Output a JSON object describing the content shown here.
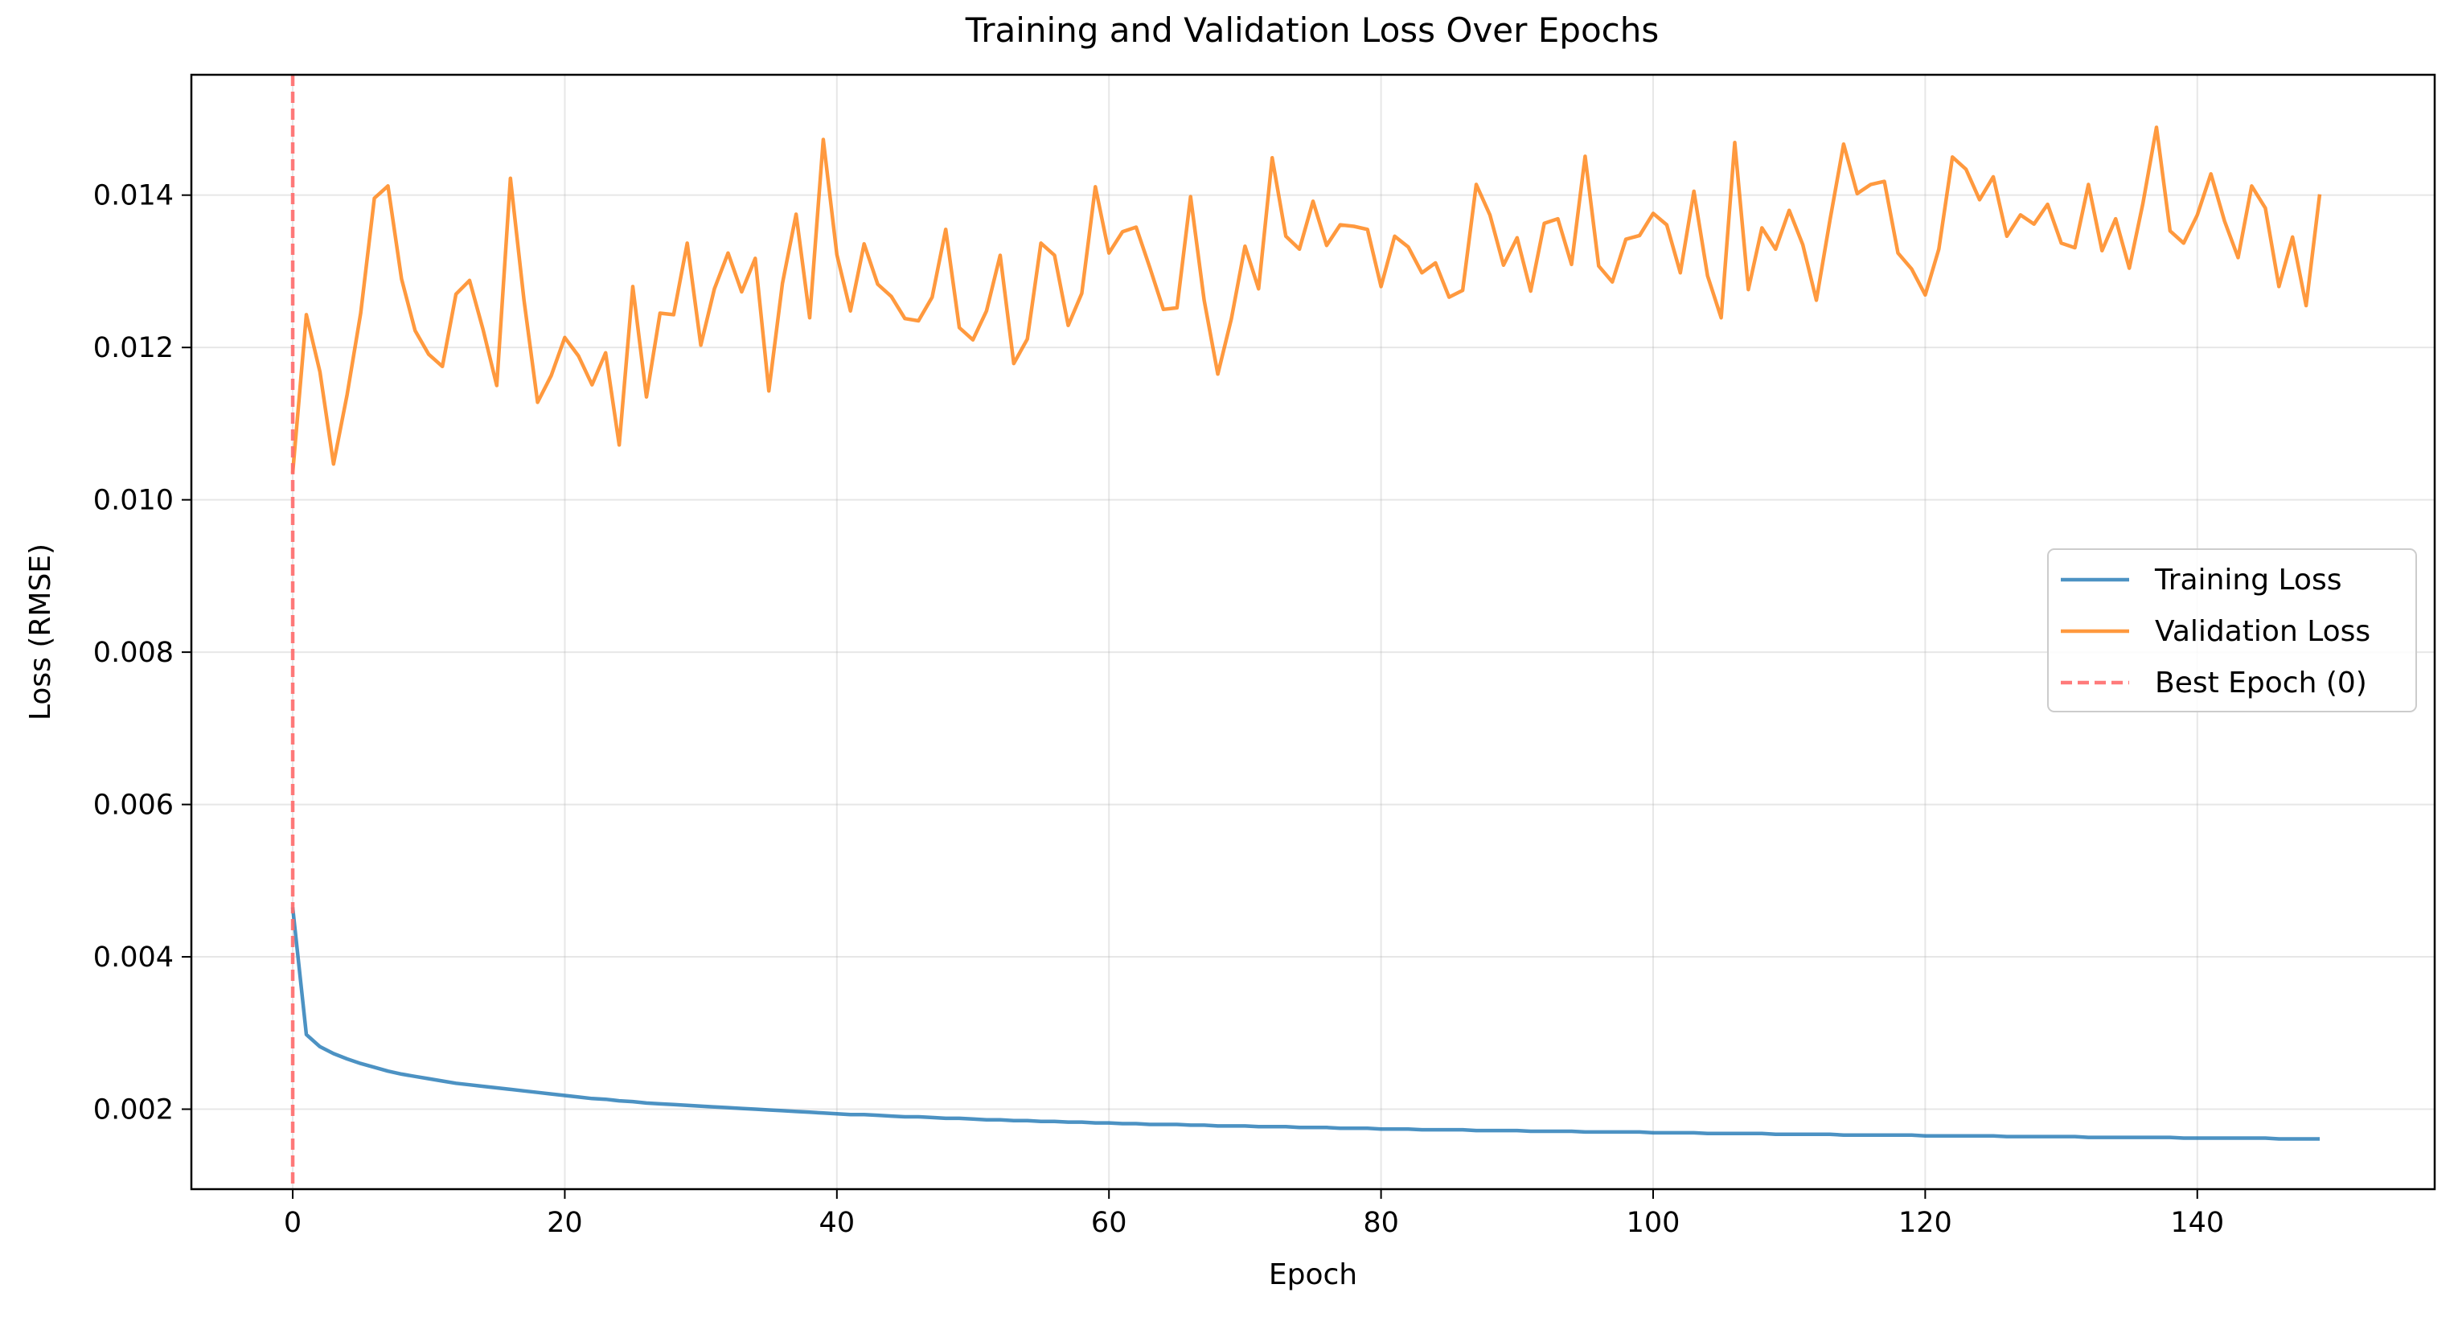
{
  "chart_data": {
    "type": "line",
    "title": "Training and Validation Loss Over Epochs",
    "xlabel": "Epoch",
    "ylabel": "Loss (RMSE)",
    "xlim": [
      -7.45,
      157.45
    ],
    "ylim": [
      0.00095,
      0.01558
    ],
    "xticks": [
      0,
      20,
      40,
      60,
      80,
      100,
      120,
      140
    ],
    "yticks": [
      0.002,
      0.004,
      0.006,
      0.008,
      0.01,
      0.012,
      0.014
    ],
    "ytick_labels": [
      "0.002",
      "0.004",
      "0.006",
      "0.008",
      "0.010",
      "0.012",
      "0.014"
    ],
    "grid": true,
    "legend_position": "center-right",
    "series": [
      {
        "name": "Training Loss",
        "color": "#1f77b4",
        "style": "solid",
        "x_start": 0,
        "values": [
          0.00465,
          0.00298,
          0.00282,
          0.00273,
          0.00266,
          0.0026,
          0.00255,
          0.0025,
          0.00246,
          0.00243,
          0.0024,
          0.00237,
          0.00234,
          0.00232,
          0.0023,
          0.00228,
          0.00226,
          0.00224,
          0.00222,
          0.0022,
          0.00218,
          0.00216,
          0.00214,
          0.00213,
          0.00211,
          0.0021,
          0.00208,
          0.00207,
          0.00206,
          0.00205,
          0.00204,
          0.00203,
          0.00202,
          0.00201,
          0.002,
          0.00199,
          0.00198,
          0.00197,
          0.00196,
          0.00195,
          0.00194,
          0.00193,
          0.00193,
          0.00192,
          0.00191,
          0.0019,
          0.0019,
          0.00189,
          0.00188,
          0.00188,
          0.00187,
          0.00186,
          0.00186,
          0.00185,
          0.00185,
          0.00184,
          0.00184,
          0.00183,
          0.00183,
          0.00182,
          0.00182,
          0.00181,
          0.00181,
          0.0018,
          0.0018,
          0.0018,
          0.00179,
          0.00179,
          0.00178,
          0.00178,
          0.00178,
          0.00177,
          0.00177,
          0.00177,
          0.00176,
          0.00176,
          0.00176,
          0.00175,
          0.00175,
          0.00175,
          0.00174,
          0.00174,
          0.00174,
          0.00173,
          0.00173,
          0.00173,
          0.00173,
          0.00172,
          0.00172,
          0.00172,
          0.00172,
          0.00171,
          0.00171,
          0.00171,
          0.00171,
          0.0017,
          0.0017,
          0.0017,
          0.0017,
          0.0017,
          0.00169,
          0.00169,
          0.00169,
          0.00169,
          0.00168,
          0.00168,
          0.00168,
          0.00168,
          0.00168,
          0.00167,
          0.00167,
          0.00167,
          0.00167,
          0.00167,
          0.00166,
          0.00166,
          0.00166,
          0.00166,
          0.00166,
          0.00166,
          0.00165,
          0.00165,
          0.00165,
          0.00165,
          0.00165,
          0.00165,
          0.00164,
          0.00164,
          0.00164,
          0.00164,
          0.00164,
          0.00164,
          0.00163,
          0.00163,
          0.00163,
          0.00163,
          0.00163,
          0.00163,
          0.00163,
          0.00162,
          0.00162,
          0.00162,
          0.00162,
          0.00162,
          0.00162,
          0.00162,
          0.00161,
          0.00161,
          0.00161,
          0.00161
        ]
      },
      {
        "name": "Validation Loss",
        "color": "#ff7f0e",
        "style": "solid",
        "x_start": 0,
        "values": [
          0.01035,
          0.01243,
          0.01168,
          0.01047,
          0.01138,
          0.01245,
          0.01396,
          0.01412,
          0.0129,
          0.01222,
          0.01191,
          0.01175,
          0.0127,
          0.01288,
          0.01223,
          0.0115,
          0.01422,
          0.01262,
          0.01128,
          0.01163,
          0.01213,
          0.01189,
          0.01151,
          0.01193,
          0.01072,
          0.0128,
          0.01135,
          0.01245,
          0.01243,
          0.01337,
          0.01203,
          0.01277,
          0.01324,
          0.01273,
          0.01317,
          0.01143,
          0.01284,
          0.01375,
          0.01239,
          0.01473,
          0.01322,
          0.01248,
          0.01336,
          0.01283,
          0.01267,
          0.01238,
          0.01235,
          0.01266,
          0.01355,
          0.01226,
          0.0121,
          0.01248,
          0.01321,
          0.01179,
          0.01211,
          0.01337,
          0.01321,
          0.01229,
          0.01271,
          0.01411,
          0.01324,
          0.01352,
          0.01358,
          0.01305,
          0.0125,
          0.01252,
          0.01398,
          0.01262,
          0.01165,
          0.01238,
          0.01333,
          0.01277,
          0.01449,
          0.01346,
          0.01329,
          0.01392,
          0.01334,
          0.01361,
          0.01359,
          0.01355,
          0.0128,
          0.01346,
          0.01332,
          0.01298,
          0.01311,
          0.01266,
          0.01275,
          0.01414,
          0.01374,
          0.01308,
          0.01344,
          0.01274,
          0.01363,
          0.01369,
          0.01309,
          0.01451,
          0.01307,
          0.01286,
          0.01342,
          0.01347,
          0.01376,
          0.01361,
          0.01298,
          0.01405,
          0.01294,
          0.01239,
          0.01469,
          0.01276,
          0.01357,
          0.01329,
          0.0138,
          0.01335,
          0.01262,
          0.01367,
          0.01467,
          0.01402,
          0.01414,
          0.01418,
          0.01324,
          0.01303,
          0.01269,
          0.01329,
          0.0145,
          0.01434,
          0.01394,
          0.01424,
          0.01346,
          0.01374,
          0.01362,
          0.01388,
          0.01337,
          0.01331,
          0.01414,
          0.01327,
          0.01369,
          0.01304,
          0.01389,
          0.01489,
          0.01353,
          0.01337,
          0.01374,
          0.01428,
          0.01366,
          0.01318,
          0.01412,
          0.01383,
          0.0128,
          0.01345,
          0.01255,
          0.01401
        ]
      }
    ],
    "vlines": [
      {
        "name": "Best Epoch (0)",
        "x": 0,
        "color": "#ff6b6b",
        "style": "dashed"
      }
    ]
  }
}
